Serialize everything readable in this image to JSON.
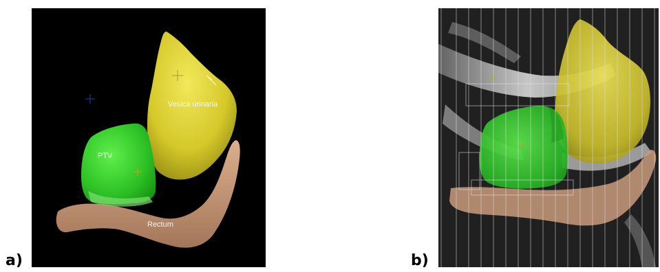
{
  "panels": {
    "a": {
      "label": "a)",
      "structures": {
        "bladder": "Vesica urinaria",
        "ptv": "PTV",
        "rectum": "Rectum"
      }
    },
    "b": {
      "label": "b)"
    }
  },
  "colors": {
    "bladder": "#d8cc2a",
    "ptv": "#2fc12a",
    "rectum": "#c89a78",
    "panel_a_background": "#000000",
    "panel_b_background": "#1a1a1a"
  }
}
